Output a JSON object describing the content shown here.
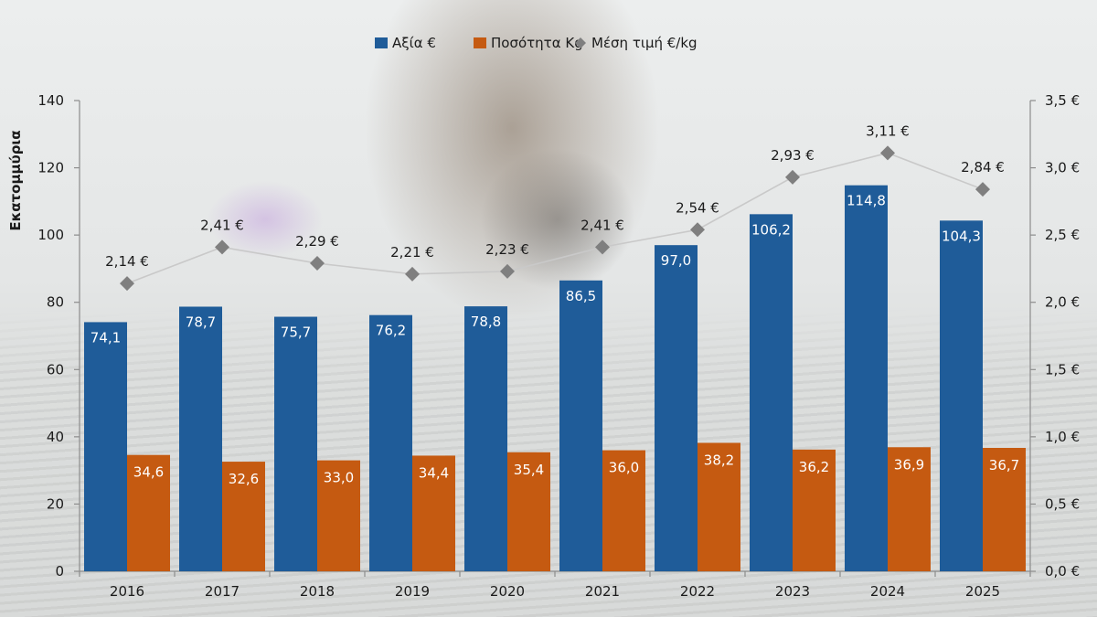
{
  "chart_data": {
    "type": "bar",
    "categories": [
      "2016",
      "2017",
      "2018",
      "2019",
      "2020",
      "2021",
      "2022",
      "2023",
      "2024",
      "2025"
    ],
    "series": [
      {
        "name": "Αξία €",
        "type": "bar",
        "axis": "left",
        "color": "#1f5c99",
        "values": [
          74.1,
          78.7,
          75.7,
          76.2,
          78.8,
          86.5,
          97.0,
          106.2,
          114.8,
          104.3
        ],
        "labels": [
          "74,1",
          "78,7",
          "75,7",
          "76,2",
          "78,8",
          "86,5",
          "97,0",
          "106,2",
          "114,8",
          "104,3"
        ]
      },
      {
        "name": "Ποσότητα Kg",
        "type": "bar",
        "axis": "left",
        "color": "#c55a11",
        "values": [
          34.6,
          32.6,
          33.0,
          34.4,
          35.4,
          36.0,
          38.2,
          36.2,
          36.9,
          36.7
        ],
        "labels": [
          "34,6",
          "32,6",
          "33,0",
          "34,4",
          "35,4",
          "36,0",
          "38,2",
          "36,2",
          "36,9",
          "36,7"
        ]
      },
      {
        "name": "Μέση τιμή €/kg",
        "type": "line",
        "axis": "right",
        "color": "#7f7f7f",
        "line_color": "#c9c9c9",
        "marker": "diamond",
        "values": [
          2.14,
          2.41,
          2.29,
          2.21,
          2.23,
          2.41,
          2.54,
          2.93,
          3.11,
          2.84
        ],
        "labels": [
          "2,14 €",
          "2,41 €",
          "2,29 €",
          "2,21 €",
          "2,23 €",
          "2,41 €",
          "2,54 €",
          "2,93 €",
          "3,11 €",
          "2,84 €"
        ]
      }
    ],
    "ylabel": "Εκατομμύρια",
    "ylim": [
      0,
      140
    ],
    "y_ticks": [
      0,
      20,
      40,
      60,
      80,
      100,
      120,
      140
    ],
    "y_tick_labels": [
      "0",
      "20",
      "40",
      "60",
      "80",
      "100",
      "120",
      "140"
    ],
    "y2lim": [
      0,
      3.5
    ],
    "y2_ticks": [
      0,
      0.5,
      1.0,
      1.5,
      2.0,
      2.5,
      3.0,
      3.5
    ],
    "y2_tick_labels": [
      "0,0 €",
      "0,5 €",
      "1,0 €",
      "1,5 €",
      "2,0 €",
      "2,5 €",
      "3,0 €",
      "3,5 €"
    ],
    "legend_position": "top-center",
    "grid": false,
    "axis_color": "#8c8c8c"
  }
}
